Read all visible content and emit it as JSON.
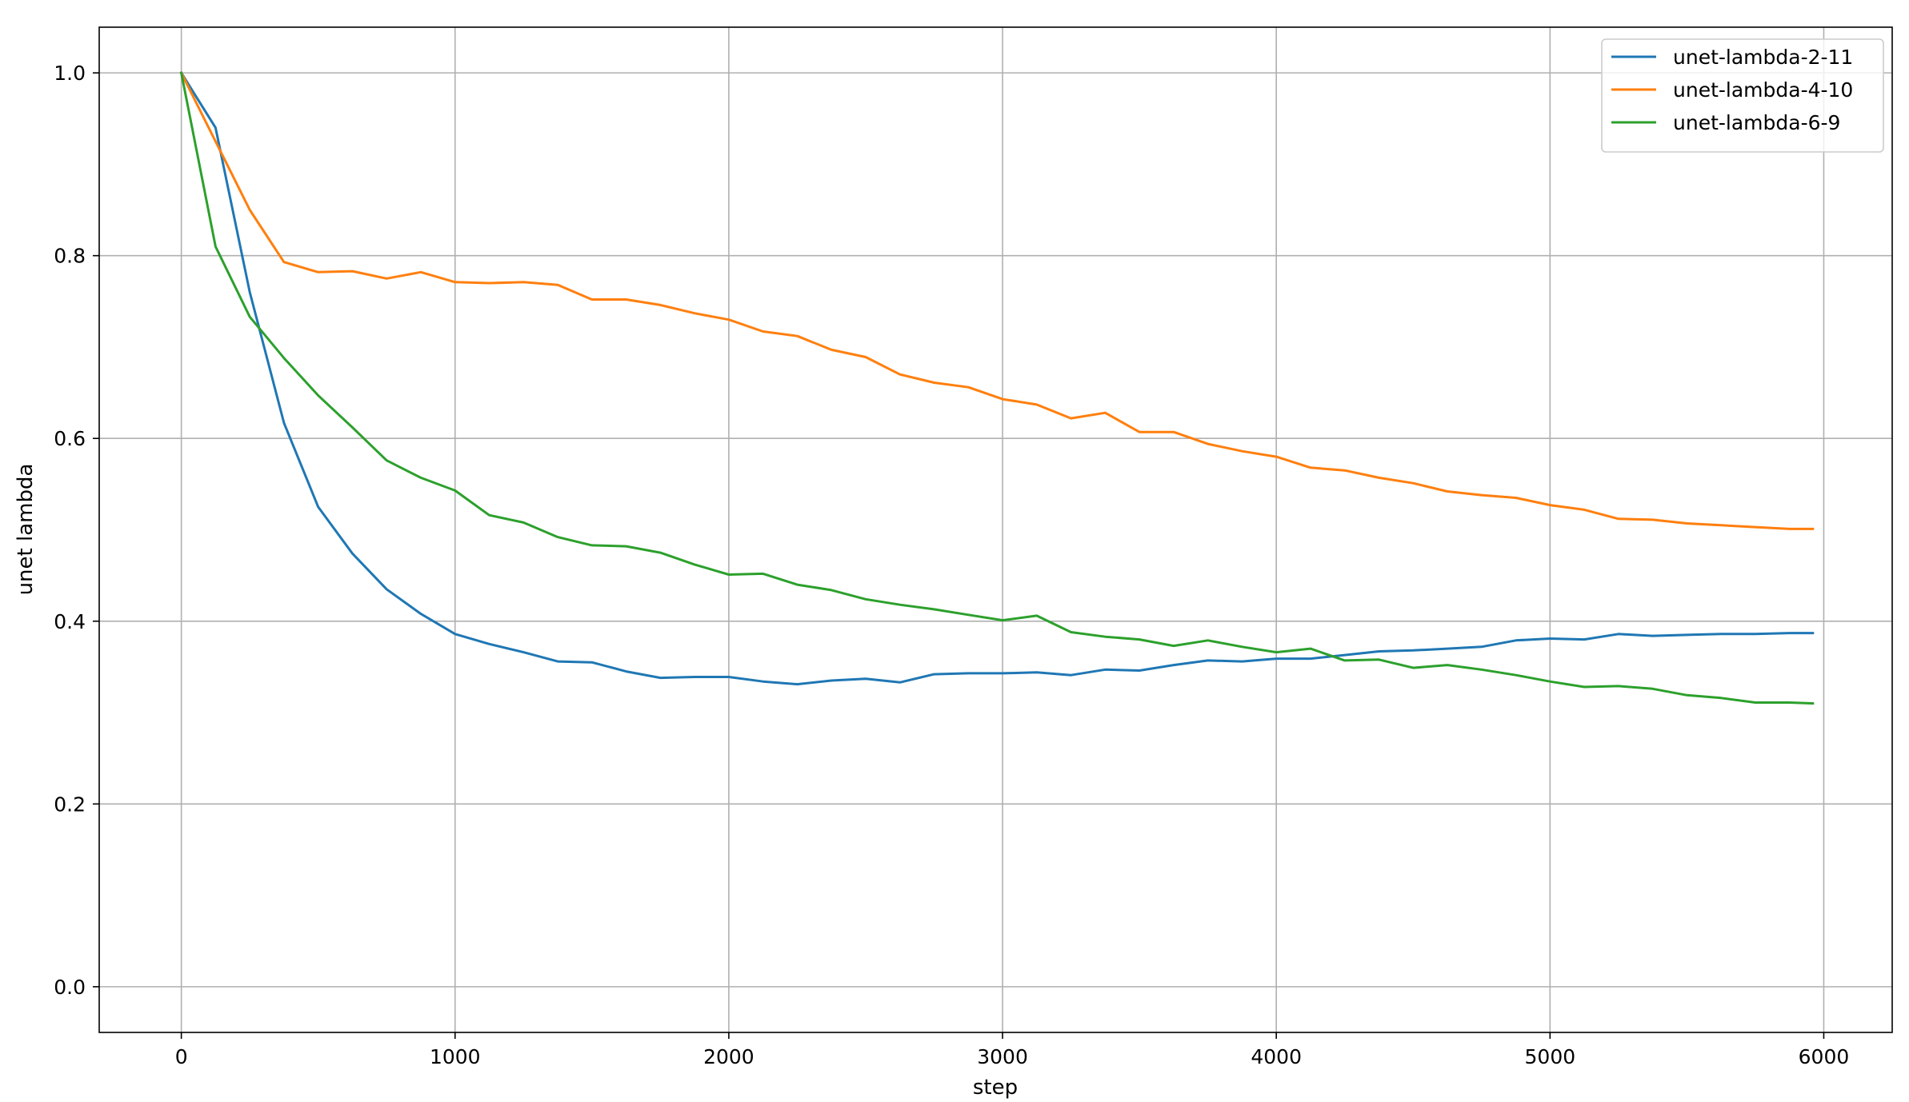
{
  "chart_data": {
    "type": "line",
    "title": "",
    "xlabel": "step",
    "ylabel": "unet lambda",
    "xlim": [
      -300,
      6250
    ],
    "ylim": [
      -0.05,
      1.05
    ],
    "xticks": [
      0,
      1000,
      2000,
      3000,
      4000,
      5000,
      6000
    ],
    "xtick_labels": [
      "0",
      "1000",
      "2000",
      "3000",
      "4000",
      "5000",
      "6000"
    ],
    "yticks": [
      0.0,
      0.2,
      0.4,
      0.6,
      0.8,
      1.0
    ],
    "ytick_labels": [
      "0.0",
      "0.2",
      "0.4",
      "0.6",
      "0.8",
      "1.0"
    ],
    "grid": true,
    "legend_position": "top-right",
    "x": [
      0,
      125,
      250,
      375,
      500,
      625,
      750,
      875,
      1000,
      1125,
      1250,
      1375,
      1500,
      1625,
      1750,
      1875,
      2000,
      2125,
      2250,
      2375,
      2500,
      2625,
      2750,
      2875,
      3000,
      3125,
      3250,
      3375,
      3500,
      3625,
      3750,
      3875,
      4000,
      4125,
      4250,
      4375,
      4500,
      4625,
      4750,
      4875,
      5000,
      5125,
      5250,
      5375,
      5500,
      5625,
      5750,
      5875,
      5960
    ],
    "series": [
      {
        "name": "unet-lambda-2-11",
        "color": "#1f77b4",
        "values": [
          1.0,
          0.94,
          0.76,
          0.617,
          0.525,
          0.474,
          0.435,
          0.408,
          0.386,
          0.375,
          0.366,
          0.356,
          0.355,
          0.345,
          0.338,
          0.339,
          0.339,
          0.334,
          0.331,
          0.335,
          0.337,
          0.333,
          0.342,
          0.343,
          0.343,
          0.344,
          0.341,
          0.347,
          0.346,
          0.352,
          0.357,
          0.356,
          0.359,
          0.359,
          0.363,
          0.367,
          0.368,
          0.37,
          0.372,
          0.379,
          0.381,
          0.38,
          0.386,
          0.384,
          0.385,
          0.386,
          0.386,
          0.387,
          0.387
        ]
      },
      {
        "name": "unet-lambda-4-10",
        "color": "#ff7f0e",
        "values": [
          1.0,
          0.925,
          0.85,
          0.793,
          0.782,
          0.783,
          0.775,
          0.782,
          0.771,
          0.77,
          0.771,
          0.768,
          0.752,
          0.752,
          0.746,
          0.737,
          0.73,
          0.717,
          0.712,
          0.697,
          0.689,
          0.67,
          0.661,
          0.656,
          0.643,
          0.637,
          0.622,
          0.628,
          0.607,
          0.607,
          0.594,
          0.586,
          0.58,
          0.568,
          0.565,
          0.557,
          0.551,
          0.542,
          0.538,
          0.535,
          0.527,
          0.522,
          0.512,
          0.511,
          0.507,
          0.505,
          0.503,
          0.501,
          0.501
        ]
      },
      {
        "name": "unet-lambda-6-9",
        "color": "#2ca02c",
        "values": [
          1.0,
          0.81,
          0.733,
          0.688,
          0.647,
          0.612,
          0.576,
          0.557,
          0.543,
          0.516,
          0.508,
          0.492,
          0.483,
          0.482,
          0.475,
          0.462,
          0.451,
          0.452,
          0.44,
          0.434,
          0.424,
          0.418,
          0.413,
          0.407,
          0.401,
          0.406,
          0.388,
          0.383,
          0.38,
          0.373,
          0.379,
          0.372,
          0.366,
          0.37,
          0.357,
          0.358,
          0.349,
          0.352,
          0.347,
          0.341,
          0.334,
          0.328,
          0.329,
          0.326,
          0.319,
          0.316,
          0.311,
          0.311,
          0.31
        ]
      }
    ]
  }
}
